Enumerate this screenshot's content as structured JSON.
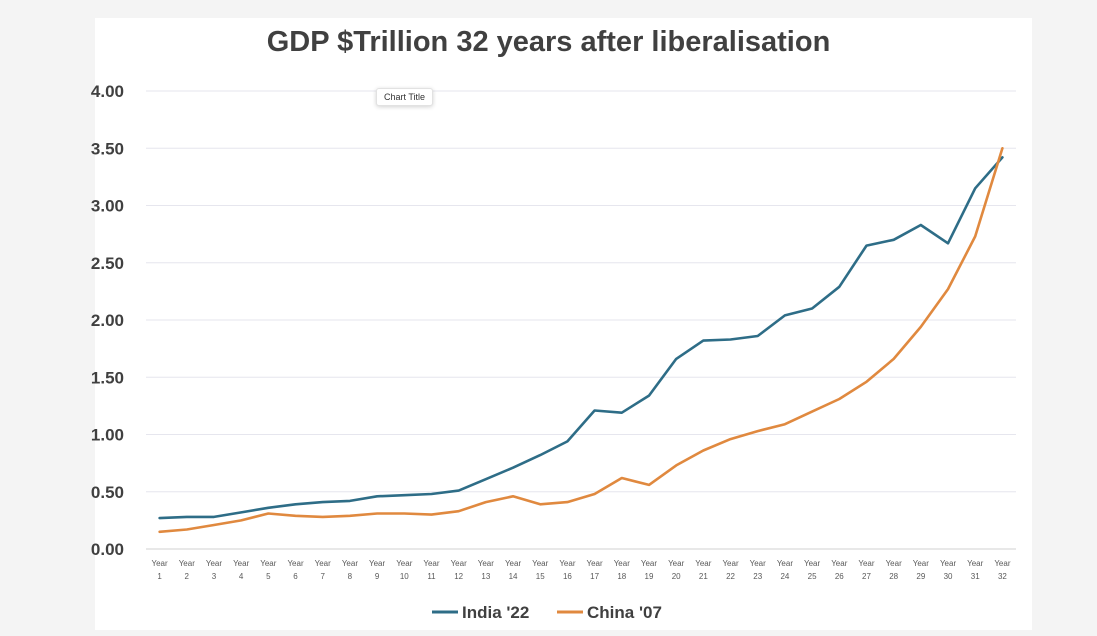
{
  "chart_data": {
    "type": "line",
    "title": "GDP $Trillion 32 years after liberalisation",
    "tooltip": "Chart Title",
    "categories": [
      "Year 1",
      "Year 2",
      "Year 3",
      "Year 4",
      "Year 5",
      "Year 6",
      "Year 7",
      "Year 8",
      "Year 9",
      "Year 10",
      "Year 11",
      "Year 12",
      "Year 13",
      "Year 14",
      "Year 15",
      "Year 16",
      "Year 17",
      "Year 18",
      "Year 19",
      "Year 20",
      "Year 21",
      "Year 22",
      "Year 23",
      "Year 24",
      "Year 25",
      "Year 26",
      "Year 27",
      "Year 28",
      "Year 29",
      "Year 30",
      "Year 31",
      "Year 32"
    ],
    "category_lines": [
      [
        "Year",
        "1"
      ],
      [
        "Year",
        "2"
      ],
      [
        "Year",
        "3"
      ],
      [
        "Year",
        "4"
      ],
      [
        "Year",
        "5"
      ],
      [
        "Year",
        "6"
      ],
      [
        "Year",
        "7"
      ],
      [
        "Year",
        "8"
      ],
      [
        "Year",
        "9"
      ],
      [
        "Year",
        "10"
      ],
      [
        "Year",
        "11"
      ],
      [
        "Year",
        "12"
      ],
      [
        "Year",
        "13"
      ],
      [
        "Year",
        "14"
      ],
      [
        "Year",
        "15"
      ],
      [
        "Year",
        "16"
      ],
      [
        "Year",
        "17"
      ],
      [
        "Year",
        "18"
      ],
      [
        "Year",
        "19"
      ],
      [
        "Year",
        "20"
      ],
      [
        "Year",
        "21"
      ],
      [
        "Year",
        "22"
      ],
      [
        "Year",
        "23"
      ],
      [
        "Year",
        "24"
      ],
      [
        "Year",
        "25"
      ],
      [
        "Year",
        "26"
      ],
      [
        "Year",
        "27"
      ],
      [
        "Year",
        "28"
      ],
      [
        "Year",
        "29"
      ],
      [
        "Year",
        "30"
      ],
      [
        "Year",
        "31"
      ],
      [
        "Year",
        "32"
      ]
    ],
    "ylim": [
      0,
      4
    ],
    "yticks": [
      "0.00",
      "0.50",
      "1.00",
      "1.50",
      "2.00",
      "2.50",
      "3.00",
      "3.50",
      "4.00"
    ],
    "grid": true,
    "legend_position": "bottom",
    "series": [
      {
        "name": "India '22",
        "color": "#2e6d87",
        "values": [
          0.27,
          0.28,
          0.28,
          0.32,
          0.36,
          0.39,
          0.41,
          0.42,
          0.46,
          0.47,
          0.48,
          0.51,
          0.61,
          0.71,
          0.82,
          0.94,
          1.21,
          1.19,
          1.34,
          1.66,
          1.82,
          1.83,
          1.86,
          2.04,
          2.1,
          2.29,
          2.65,
          2.7,
          2.83,
          2.67,
          3.15,
          3.42
        ]
      },
      {
        "name": "China '07",
        "color": "#e0893f",
        "values": [
          0.15,
          0.17,
          0.21,
          0.25,
          0.31,
          0.29,
          0.28,
          0.29,
          0.31,
          0.31,
          0.3,
          0.33,
          0.41,
          0.46,
          0.39,
          0.41,
          0.48,
          0.62,
          0.56,
          0.73,
          0.86,
          0.96,
          1.03,
          1.09,
          1.2,
          1.31,
          1.46,
          1.66,
          1.94,
          2.27,
          2.73,
          3.5
        ]
      }
    ]
  }
}
